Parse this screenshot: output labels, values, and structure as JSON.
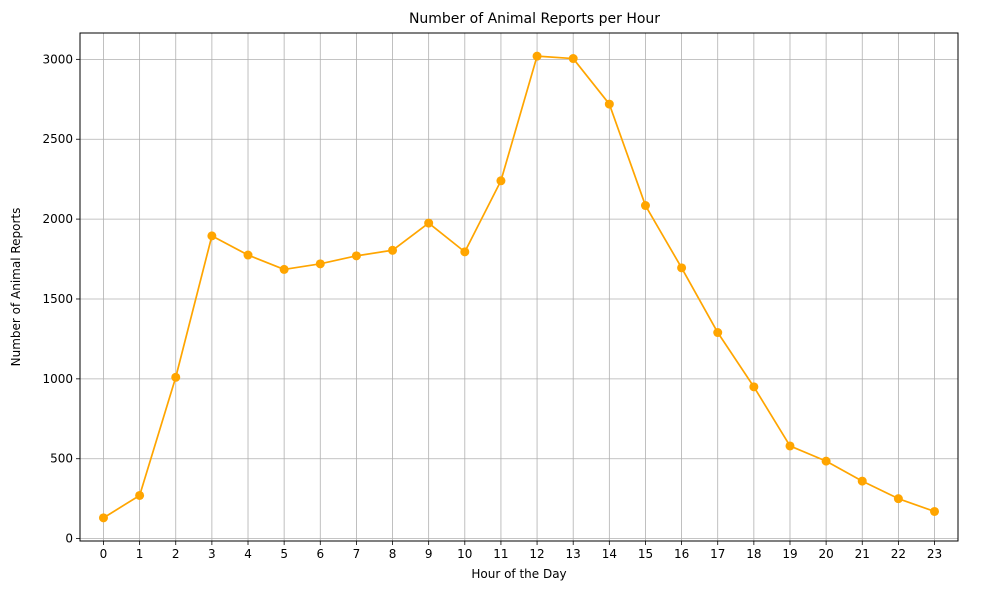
{
  "chart_data": {
    "type": "line",
    "title": "Number of Animal Reports per Hour",
    "xlabel": "Hour of the Day",
    "ylabel": "Number of Animal Reports",
    "x": [
      0,
      1,
      2,
      3,
      4,
      5,
      6,
      7,
      8,
      9,
      10,
      11,
      12,
      13,
      14,
      15,
      16,
      17,
      18,
      19,
      20,
      21,
      22,
      23
    ],
    "x_tick_labels": [
      "0",
      "1",
      "2",
      "3",
      "4",
      "5",
      "6",
      "7",
      "8",
      "9",
      "10",
      "11",
      "12",
      "13",
      "14",
      "15",
      "16",
      "17",
      "18",
      "19",
      "20",
      "21",
      "22",
      "23"
    ],
    "y_ticks": [
      0,
      500,
      1000,
      1500,
      2000,
      2500,
      3000
    ],
    "y_tick_labels": [
      "0",
      "500",
      "1000",
      "1500",
      "2000",
      "2500",
      "3000"
    ],
    "xlim": [
      -0.65,
      23.65
    ],
    "ylim": [
      -15,
      3165
    ],
    "grid": true,
    "series": [
      {
        "color": "#ffa500",
        "marker": "circle",
        "values": [
          130,
          270,
          1010,
          1895,
          1775,
          1685,
          1720,
          1770,
          1805,
          1975,
          1795,
          2240,
          3020,
          3005,
          2720,
          2085,
          1695,
          1290,
          950,
          580,
          485,
          360,
          250,
          170
        ]
      }
    ]
  }
}
